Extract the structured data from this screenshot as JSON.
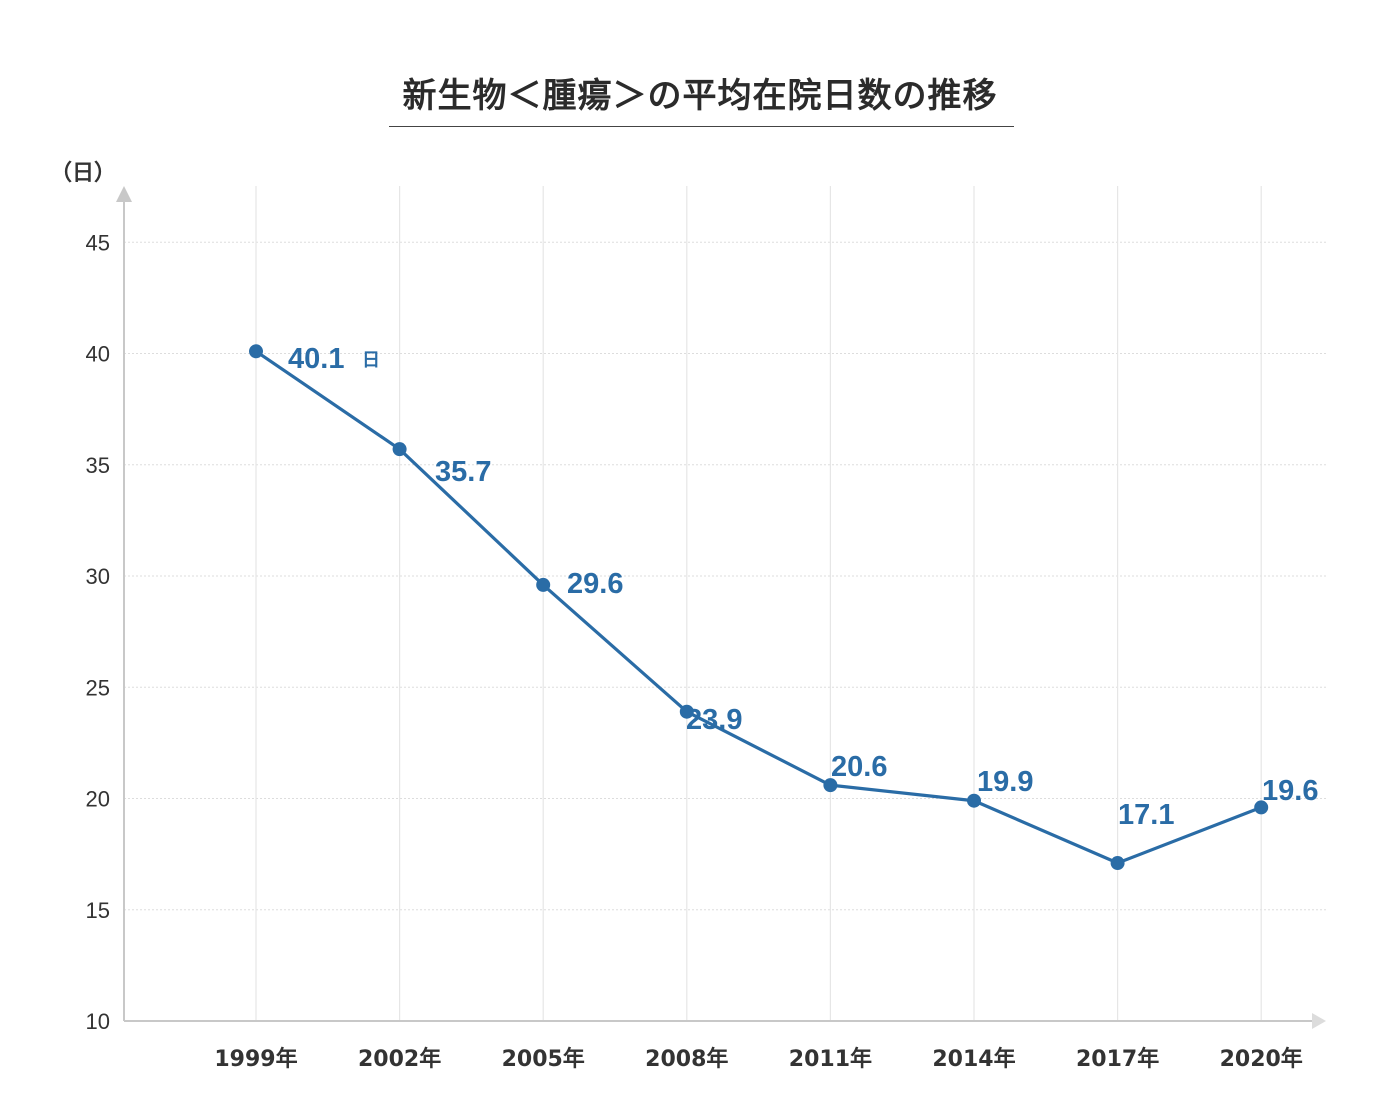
{
  "chart_data": {
    "type": "line",
    "title": "新生物＜腫瘍＞の平均在院日数の推移",
    "ylabel": "（日）",
    "xlabel": "",
    "categories": [
      "1999年",
      "2002年",
      "2005年",
      "2008年",
      "2011年",
      "2014年",
      "2017年",
      "2020年"
    ],
    "series": [
      {
        "values": [
          40.1,
          35.7,
          29.6,
          23.9,
          20.6,
          19.9,
          17.1,
          19.6
        ],
        "data_labels": [
          "40.1",
          "35.7",
          "29.6",
          "23.9",
          "20.6",
          "19.9",
          "17.1",
          "19.6"
        ],
        "first_label_suffix": "日",
        "color": "#2a6ca6"
      }
    ],
    "ylim": [
      10,
      47.5
    ],
    "yticks": [
      "10",
      "15",
      "20",
      "25",
      "30",
      "35",
      "40",
      "45"
    ],
    "grid": true,
    "legend": "none",
    "colors": {
      "line": "#2a6ca6",
      "grid": "#dddddd",
      "axis": "#c8c8c8"
    }
  }
}
